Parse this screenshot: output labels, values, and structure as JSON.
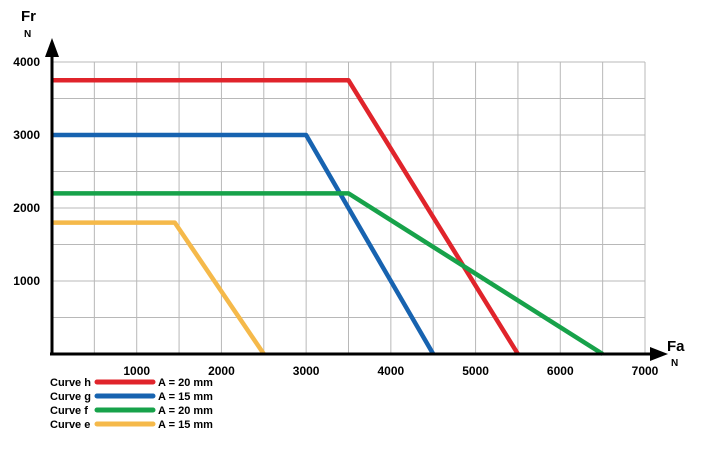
{
  "chart_data": {
    "type": "line",
    "xlabel": "Fa",
    "xunit": "N",
    "ylabel": "Fr",
    "yunit": "N",
    "xlim": [
      0,
      7000
    ],
    "ylim": [
      0,
      4000
    ],
    "xticks": [
      1000,
      2000,
      3000,
      4000,
      5000,
      6000,
      7000
    ],
    "yticks": [
      1000,
      2000,
      3000,
      4000
    ],
    "x_minor_step": 500,
    "y_minor_step": 500,
    "grid": true,
    "legend_position": "bottom-left",
    "series": [
      {
        "name": "Curve h",
        "note": "A = 20 mm",
        "color": "#e0242b",
        "points": [
          [
            0,
            3750
          ],
          [
            3500,
            3750
          ],
          [
            5500,
            0
          ]
        ]
      },
      {
        "name": "Curve g",
        "note": "A = 15 mm",
        "color": "#1763b0",
        "points": [
          [
            0,
            3000
          ],
          [
            3000,
            3000
          ],
          [
            4500,
            0
          ]
        ]
      },
      {
        "name": "Curve f",
        "note": "A = 20 mm",
        "color": "#17a24a",
        "points": [
          [
            0,
            2200
          ],
          [
            3500,
            2200
          ],
          [
            6500,
            0
          ]
        ]
      },
      {
        "name": "Curve e",
        "note": "A = 15 mm",
        "color": "#f5b94a",
        "points": [
          [
            0,
            1800
          ],
          [
            1450,
            1800
          ],
          [
            2500,
            0
          ]
        ]
      }
    ]
  }
}
